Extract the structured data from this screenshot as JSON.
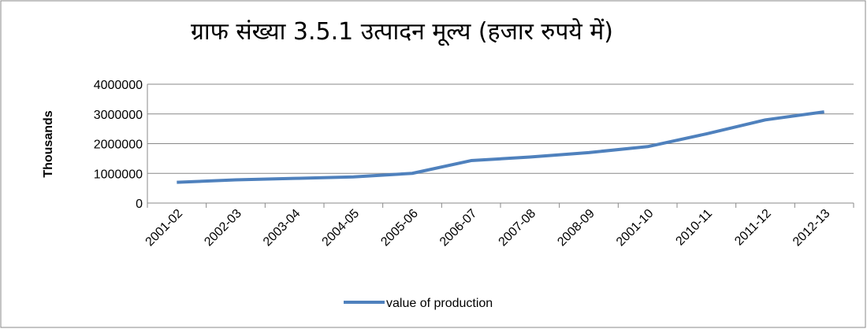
{
  "chart_data": {
    "type": "line",
    "title": "ग्राफ संख्या 3.5.1 उत्पादन मूल्य (हजार रुपये में)",
    "y_label": "Thousands",
    "categories": [
      "2001-02",
      "2002-03",
      "2003-04",
      "2004-05",
      "2005-06",
      "2006-07",
      "2007-08",
      "2008-09",
      "2001-10",
      "2010-11",
      "2011-12",
      "2012-13"
    ],
    "series": [
      {
        "name": "value of production",
        "color": "#4f81bd",
        "values": [
          700000,
          780000,
          830000,
          880000,
          1000000,
          1430000,
          1550000,
          1700000,
          1900000,
          2330000,
          2800000,
          3070000
        ]
      }
    ],
    "ylim": [
      0,
      4000000
    ],
    "yticks": [
      0,
      1000000,
      2000000,
      3000000,
      4000000
    ],
    "grid": true,
    "legend": "bottom"
  }
}
